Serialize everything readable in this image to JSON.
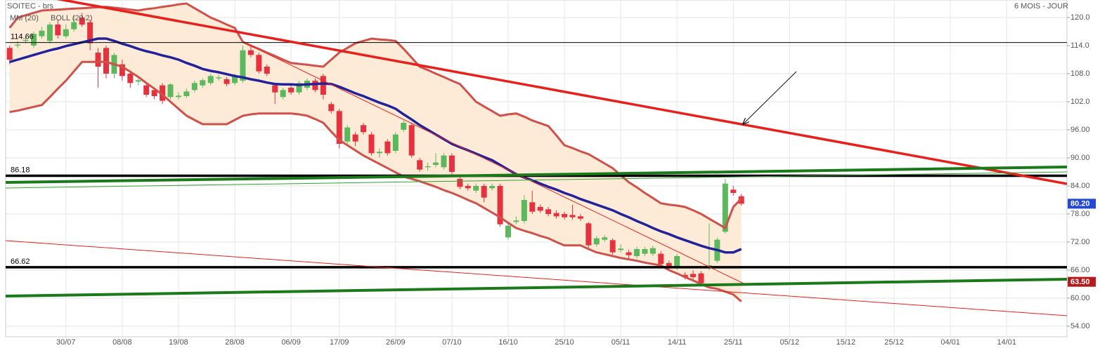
{
  "chart_data": {
    "type": "candlestick",
    "title": "SOITEC - brs",
    "subtitle": "6 MOIS - JOUR",
    "categories": [
      null,
      null,
      null,
      null,
      null,
      null,
      null,
      "30/07",
      null,
      null,
      null,
      null,
      null,
      null,
      "08/08",
      null,
      null,
      null,
      null,
      null,
      null,
      "19/08",
      null,
      null,
      null,
      null,
      null,
      null,
      "28/08",
      null,
      null,
      null,
      null,
      null,
      null,
      "06/09",
      null,
      null,
      null,
      null,
      null,
      "17/09",
      null,
      null,
      null,
      null,
      null,
      null,
      "26/09",
      null,
      null,
      null,
      null,
      null,
      null,
      "07/10",
      null,
      null,
      null,
      null,
      null,
      null,
      "16/10",
      null,
      null,
      null,
      null,
      null,
      null,
      "25/10",
      null,
      null,
      null,
      null,
      null,
      null,
      "05/11",
      null,
      null,
      null,
      null,
      null,
      null,
      "14/11",
      null,
      null,
      null,
      null,
      null,
      null,
      "25/11",
      null,
      null,
      null,
      null,
      null,
      null,
      "05/12",
      null,
      null,
      null,
      null,
      null,
      null,
      "15/12",
      null,
      null,
      null,
      null,
      null,
      "25/12",
      null,
      null,
      null,
      null,
      null,
      null,
      "04/01",
      null,
      null,
      null,
      null,
      null,
      null,
      "14/01",
      null,
      null,
      null,
      null,
      null,
      null,
      null
    ],
    "open": [
      113.5,
      114,
      115,
      114,
      116,
      115,
      118.5,
      116,
      117.5,
      120,
      119,
      112.5,
      113.5,
      108,
      110,
      108,
      106.3,
      105.5,
      104.5,
      105.5,
      103,
      103,
      103.2,
      104.5,
      105.5,
      106,
      107,
      106.8,
      106,
      106.5,
      113,
      112,
      109.5,
      105.5,
      103,
      105,
      104,
      105,
      106.5,
      107.5,
      101.5,
      100,
      93.5,
      95,
      97,
      95,
      91,
      93.5,
      91.5,
      96,
      97,
      89.5,
      88,
      88.5,
      88,
      90.5,
      85.5,
      84,
      83,
      84,
      83.5,
      84,
      73,
      76.3,
      76.5,
      80.5,
      79.5,
      79,
      78.2,
      78,
      77.8,
      77.5,
      76,
      71.5,
      72.5,
      72.4,
      70.3,
      69.8,
      69,
      69.5,
      69.5,
      69.5,
      67.5,
      66.5,
      65,
      65.2,
      65.3,
      66.5,
      68,
      74.2,
      83.2,
      81.8,
      null,
      null,
      null,
      null,
      null,
      null,
      null,
      null,
      null,
      null,
      null,
      null,
      null,
      null,
      null,
      null,
      null,
      null,
      null,
      null,
      null,
      null,
      null,
      null,
      null,
      null,
      null,
      null,
      null,
      null,
      null,
      null,
      null,
      null,
      null,
      null,
      null,
      null,
      null,
      null
    ],
    "high": [
      114,
      115,
      116,
      117,
      118,
      119,
      119.5,
      118.5,
      120.5,
      121,
      119.5,
      113.5,
      114,
      112.5,
      111,
      108.5,
      107,
      106,
      105,
      106,
      106,
      104,
      104.8,
      106.5,
      107,
      108,
      107.8,
      107.3,
      108,
      114,
      114,
      112.5,
      110,
      106,
      105,
      105.5,
      106.5,
      107,
      107,
      108,
      102,
      100.5,
      97,
      95.5,
      97.5,
      95.5,
      92,
      94,
      95.5,
      98,
      97.5,
      90,
      89,
      91,
      91,
      91,
      86,
      84.5,
      84.5,
      84.5,
      84.5,
      84.5,
      76,
      77.5,
      82,
      83,
      80,
      79.5,
      78.8,
      78.5,
      80,
      78,
      76.3,
      73.3,
      73.5,
      72.8,
      71.5,
      70.3,
      71,
      71,
      71.2,
      70,
      68,
      69.5,
      65.5,
      66,
      65.8,
      76,
      73,
      85.5,
      84,
      82.3,
      null,
      null,
      null,
      null,
      null,
      null,
      null,
      null,
      null,
      null,
      null,
      null,
      null,
      null,
      null,
      null,
      null,
      null,
      null,
      null,
      null,
      null,
      null,
      null,
      null,
      null,
      null,
      null,
      null,
      null,
      null,
      null,
      null,
      null,
      null,
      null,
      null,
      null,
      null,
      null
    ],
    "low": [
      110,
      113.5,
      114.5,
      113.5,
      115.5,
      114.5,
      115.5,
      115.5,
      117,
      118,
      113,
      105,
      107,
      107,
      106.5,
      105,
      105.5,
      103,
      102.5,
      101.5,
      102.5,
      102.5,
      102.8,
      104,
      105,
      105.5,
      106.5,
      105.3,
      105.5,
      106,
      111.5,
      108,
      107.5,
      101.5,
      102.5,
      103.5,
      103.5,
      104.5,
      104,
      102.5,
      99.5,
      92,
      93,
      92.5,
      95,
      90.5,
      90,
      90.5,
      91,
      95.5,
      90,
      87,
      87.3,
      88,
      87.5,
      86.5,
      83.3,
      83,
      82.5,
      80.5,
      83,
      75.3,
      72.5,
      75.8,
      76,
      78,
      78.2,
      77.5,
      77,
      76.8,
      76.8,
      76.5,
      70.8,
      71,
      72,
      69.3,
      69.8,
      68.5,
      68.5,
      69,
      69,
      66.5,
      66,
      66,
      64,
      63.5,
      62.7,
      66,
      67.5,
      73.8,
      82,
      79.8,
      null,
      null,
      null,
      null,
      null,
      null,
      null,
      null,
      null,
      null,
      null,
      null,
      null,
      null,
      null,
      null,
      null,
      null,
      null,
      null,
      null,
      null,
      null,
      null,
      null,
      null,
      null,
      null,
      null,
      null,
      null,
      null,
      null,
      null,
      null,
      null,
      null,
      null,
      null,
      null
    ],
    "close": [
      111,
      114.2,
      115.2,
      116.5,
      117.2,
      118.5,
      116.2,
      117.5,
      119,
      118.5,
      114.5,
      109.5,
      108,
      112,
      107.5,
      106,
      106.6,
      103.5,
      103.2,
      102.2,
      105.7,
      103.3,
      104.2,
      106,
      106.6,
      107.5,
      107.2,
      105.8,
      107.5,
      113,
      112,
      108.5,
      108,
      104,
      104.5,
      104,
      106,
      106.5,
      104.5,
      103.5,
      100,
      93,
      96.5,
      93.5,
      95.5,
      91,
      91.3,
      91,
      95,
      97.5,
      90.5,
      87.5,
      88.2,
      89,
      90.5,
      87,
      83.8,
      83.5,
      84,
      81.5,
      84,
      75.8,
      75.5,
      76.6,
      81,
      78.5,
      78.7,
      78,
      77.5,
      77.3,
      77.3,
      77,
      71.3,
      72.8,
      73,
      69.8,
      70.6,
      69.2,
      70.5,
      70.5,
      70.7,
      67.3,
      66.5,
      69,
      64.5,
      64.5,
      63.2,
      67,
      72.5,
      84.5,
      82.5,
      80.2,
      null,
      null,
      null,
      null,
      null,
      null,
      null,
      null,
      null,
      null,
      null,
      null,
      null,
      null,
      null,
      null,
      null,
      null,
      null,
      null,
      null,
      null,
      null,
      null,
      null,
      null,
      null,
      null,
      null,
      null,
      null,
      null,
      null,
      null,
      null,
      null,
      null,
      null,
      null,
      null
    ],
    "up_color": "#5cb85c",
    "down_color": "#e5323e",
    "series": [
      {
        "name": "MM (20)",
        "color": "#22229a",
        "values": [
          110.5,
          111,
          111.5,
          112,
          112.5,
          113,
          113.4,
          113.9,
          114.3,
          114.7,
          115.1,
          115.5,
          115.5,
          115,
          114.4,
          113.9,
          113.3,
          112.8,
          112.4,
          111.9,
          111.5,
          111,
          110.3,
          109.7,
          109,
          108.6,
          108.3,
          107.9,
          107.5,
          107.2,
          106.8,
          106.5,
          106.1,
          105.8,
          105.7,
          105.7,
          105.6,
          105.7,
          105.8,
          105.9,
          105.8,
          105.2,
          104.5,
          103.8,
          103.2,
          102.5,
          101.8,
          101.2,
          100.5,
          99.3,
          98.2,
          97,
          96,
          95,
          94,
          93,
          92.3,
          91.6,
          90.9,
          90.2,
          89.5,
          88.5,
          87.5,
          86.5,
          85.8,
          85.2,
          84.5,
          83.8,
          83.2,
          82.5,
          81.9,
          81.2,
          80.6,
          80,
          79.4,
          78.8,
          78,
          77.3,
          76.5,
          75.8,
          75,
          74.3,
          73.7,
          73,
          72.4,
          71.8,
          71.2,
          70.7,
          70.3,
          69.8,
          69.8,
          70.5,
          null,
          null,
          null,
          null,
          null,
          null,
          null,
          null,
          null,
          null,
          null,
          null,
          null,
          null,
          null,
          null,
          null,
          null,
          null,
          null,
          null,
          null,
          null,
          null,
          null,
          null,
          null,
          null,
          null,
          null,
          null,
          null,
          null,
          null,
          null,
          null,
          null,
          null,
          null,
          null
        ]
      }
    ],
    "bollinger": {
      "name": "BOLL (20,2)",
      "color": "#d0504a",
      "fill": "#fdebd7",
      "upper": [
        117.8,
        120,
        120.5,
        121,
        121.5,
        121.6,
        121.7,
        121.8,
        121.9,
        122,
        122.1,
        122.2,
        122.3,
        122.1,
        121.9,
        121.7,
        121.5,
        121.8,
        122,
        122.3,
        122.5,
        122.8,
        123,
        122,
        121,
        120,
        119.3,
        118.5,
        117.8,
        114.8,
        114,
        113.3,
        112.5,
        111.8,
        111,
        110.3,
        110.1,
        109.9,
        109.7,
        109.5,
        111,
        112.5,
        113.5,
        114.5,
        115,
        115.5,
        115.3,
        115.2,
        115,
        113.3,
        111.4,
        109.5,
        108.8,
        108,
        107.3,
        106.5,
        105.8,
        103.9,
        102,
        101,
        100,
        99,
        99.3,
        99.5,
        98.8,
        98,
        97.4,
        96.8,
        94.8,
        92.7,
        92.1,
        91.4,
        90.8,
        89.8,
        88.8,
        87.8,
        86.3,
        84.8,
        83.7,
        82.5,
        81.4,
        80.3,
        80,
        79.8,
        79.5,
        78.8,
        78,
        77,
        76,
        75,
        79.5,
        81.3,
        null,
        null,
        null,
        null,
        null,
        null,
        null,
        null,
        null,
        null,
        null,
        null,
        null,
        null,
        null,
        null,
        null,
        null,
        null,
        null,
        null,
        null,
        null,
        null,
        null,
        null,
        null,
        null,
        null,
        null,
        null,
        null,
        null,
        null,
        null,
        null,
        null,
        null,
        null,
        null
      ],
      "lower": [
        99.8,
        100.1,
        100.5,
        100.9,
        101.3,
        103,
        104.8,
        106.5,
        108.5,
        110.5,
        110.5,
        110.5,
        110.5,
        110,
        109.5,
        108.4,
        107.3,
        106,
        104.8,
        103.5,
        102,
        100.5,
        99,
        98.1,
        97.2,
        97.2,
        97.2,
        97.2,
        98.1,
        99,
        99.3,
        99.5,
        99.5,
        99.5,
        99.5,
        99.5,
        99.3,
        99,
        98.3,
        97.5,
        95.6,
        93.8,
        92.7,
        91.6,
        90.5,
        89.6,
        88.7,
        87.8,
        86.9,
        86,
        85.5,
        85,
        84.4,
        83.8,
        83.1,
        82.5,
        81.8,
        81,
        80.3,
        79.3,
        78.3,
        77.3,
        76.1,
        75,
        74.4,
        73.9,
        73.3,
        72.8,
        72,
        71.3,
        71.3,
        71.3,
        70.5,
        69.8,
        69.4,
        69,
        68.6,
        68.3,
        68,
        67.6,
        67.3,
        67,
        66,
        65.3,
        64.5,
        63.8,
        63,
        62.3,
        62,
        61.4,
        60.8,
        59.3,
        null,
        null,
        null,
        null,
        null,
        null,
        null,
        null,
        null,
        null,
        null,
        null,
        null,
        null,
        null,
        null,
        null,
        null,
        null,
        null,
        null,
        null,
        null,
        null,
        null,
        null,
        null,
        null,
        null,
        null,
        null,
        null,
        null,
        null,
        null,
        null,
        null,
        null,
        null,
        null
      ]
    },
    "levels": [
      {
        "value": 114.66,
        "style": "thin",
        "color": "#000000"
      },
      {
        "value": 86.18,
        "style": "thick",
        "color": "#000000"
      },
      {
        "value": 66.62,
        "style": "thick",
        "color": "#000000"
      }
    ],
    "price_markers": [
      {
        "value": 80.2,
        "label": "80.20",
        "color": "#2348d8"
      },
      {
        "value": 63.5,
        "label": "63.50",
        "color": "#b71c1c"
      }
    ],
    "ylim": [
      51.75,
      123.75
    ],
    "yticks": [
      {
        "value": 120,
        "label": "120.0"
      },
      {
        "value": 114,
        "label": "114.0"
      },
      {
        "value": 108,
        "label": "108.0"
      },
      {
        "value": 102,
        "label": "102.0"
      },
      {
        "value": 96,
        "label": "96.00"
      },
      {
        "value": 90,
        "label": "90.00"
      },
      {
        "value": 84,
        "label": "84.00"
      },
      {
        "value": 78,
        "label": "78.00"
      },
      {
        "value": 72,
        "label": "72.00"
      },
      {
        "value": 66,
        "label": "66.00"
      },
      {
        "value": 60,
        "label": "60.00"
      },
      {
        "value": 54,
        "label": "54.00"
      }
    ],
    "grid": true
  }
}
